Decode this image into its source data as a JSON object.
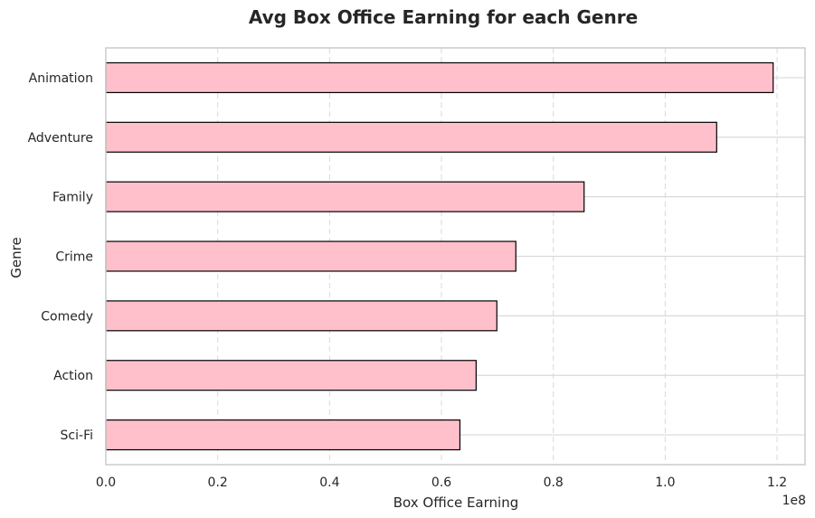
{
  "chart_data": {
    "type": "bar",
    "orientation": "horizontal",
    "title": "Avg Box Office Earning for each Genre",
    "xlabel": "Box Office Earning",
    "ylabel": "Genre",
    "offset_text": "1e8",
    "categories": [
      "Animation",
      "Adventure",
      "Family",
      "Crime",
      "Comedy",
      "Action",
      "Sci-Fi"
    ],
    "values": [
      119300000,
      109200000,
      85500000,
      73300000,
      69900000,
      66200000,
      63300000
    ],
    "xlim": [
      0,
      125000000
    ],
    "xtick_values": [
      0,
      20000000,
      40000000,
      60000000,
      80000000,
      100000000,
      120000000
    ],
    "xtick_labels": [
      "0.0",
      "0.2",
      "0.4",
      "0.6",
      "0.8",
      "1.0",
      "1.2"
    ],
    "grid": true,
    "colors": {
      "bar_fill": "#ffc0cb",
      "bar_edge": "#000000",
      "grid": "#d9d9d9",
      "spine": "#cccccc"
    }
  }
}
